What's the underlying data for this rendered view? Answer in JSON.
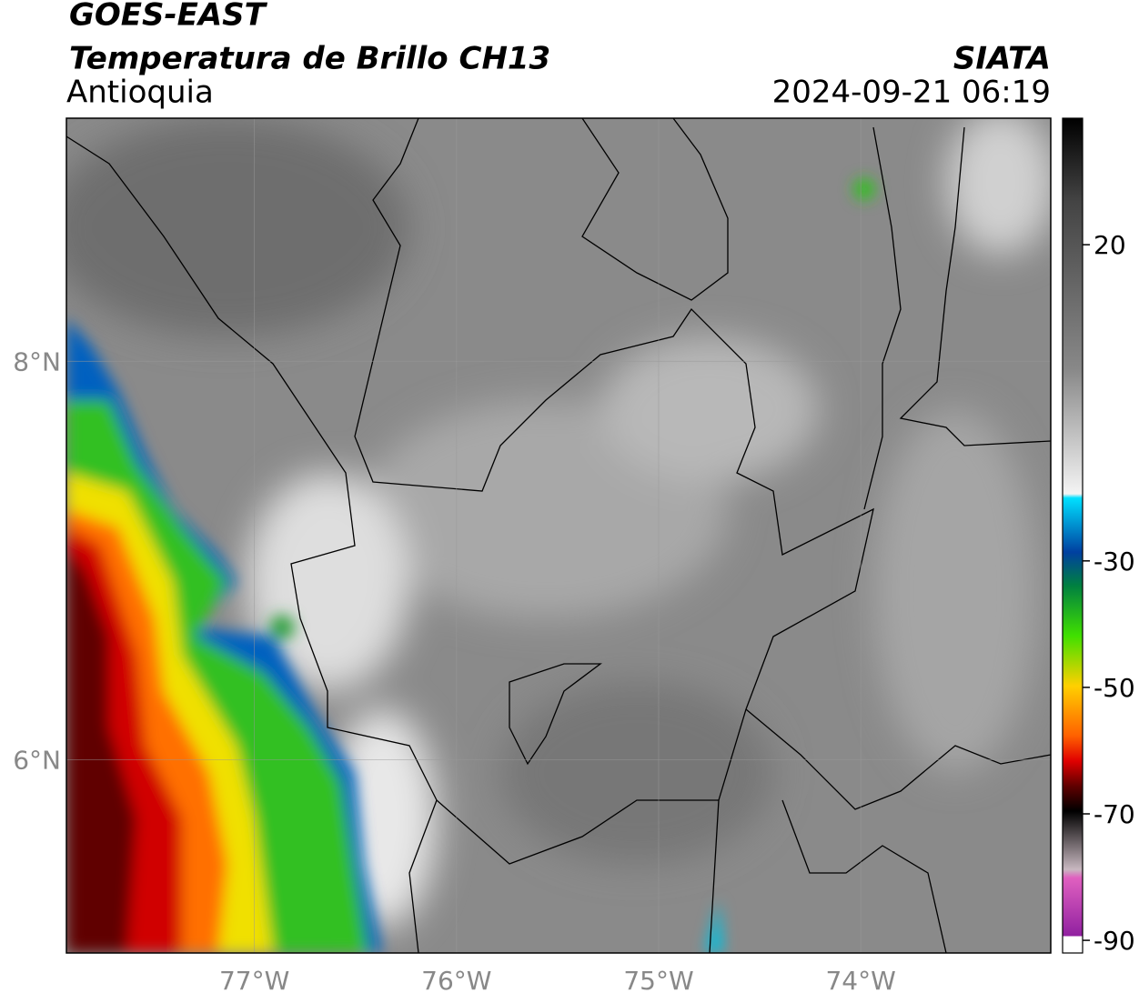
{
  "header": {
    "satellite": "GOES-EAST",
    "product": "Temperatura de Brillo CH13",
    "region": "Antioquia",
    "agency": "SIATA",
    "datetime": "2024-09-21 06:19"
  },
  "map": {
    "lonlim": [
      -77.93,
      -73.06
    ],
    "latlim": [
      5.03,
      9.22
    ],
    "lon_ticks": [
      {
        "value": -77,
        "label": "77°W"
      },
      {
        "value": -76,
        "label": "76°W"
      },
      {
        "value": -75,
        "label": "75°W"
      },
      {
        "value": -74,
        "label": "74°W"
      }
    ],
    "lat_ticks": [
      {
        "value": 8,
        "label": "8°N"
      },
      {
        "value": 6,
        "label": "6°N"
      }
    ]
  },
  "colorbar": {
    "range": [
      -92,
      40
    ],
    "ticks": [
      20,
      -30,
      -50,
      -70,
      -90
    ]
  }
}
